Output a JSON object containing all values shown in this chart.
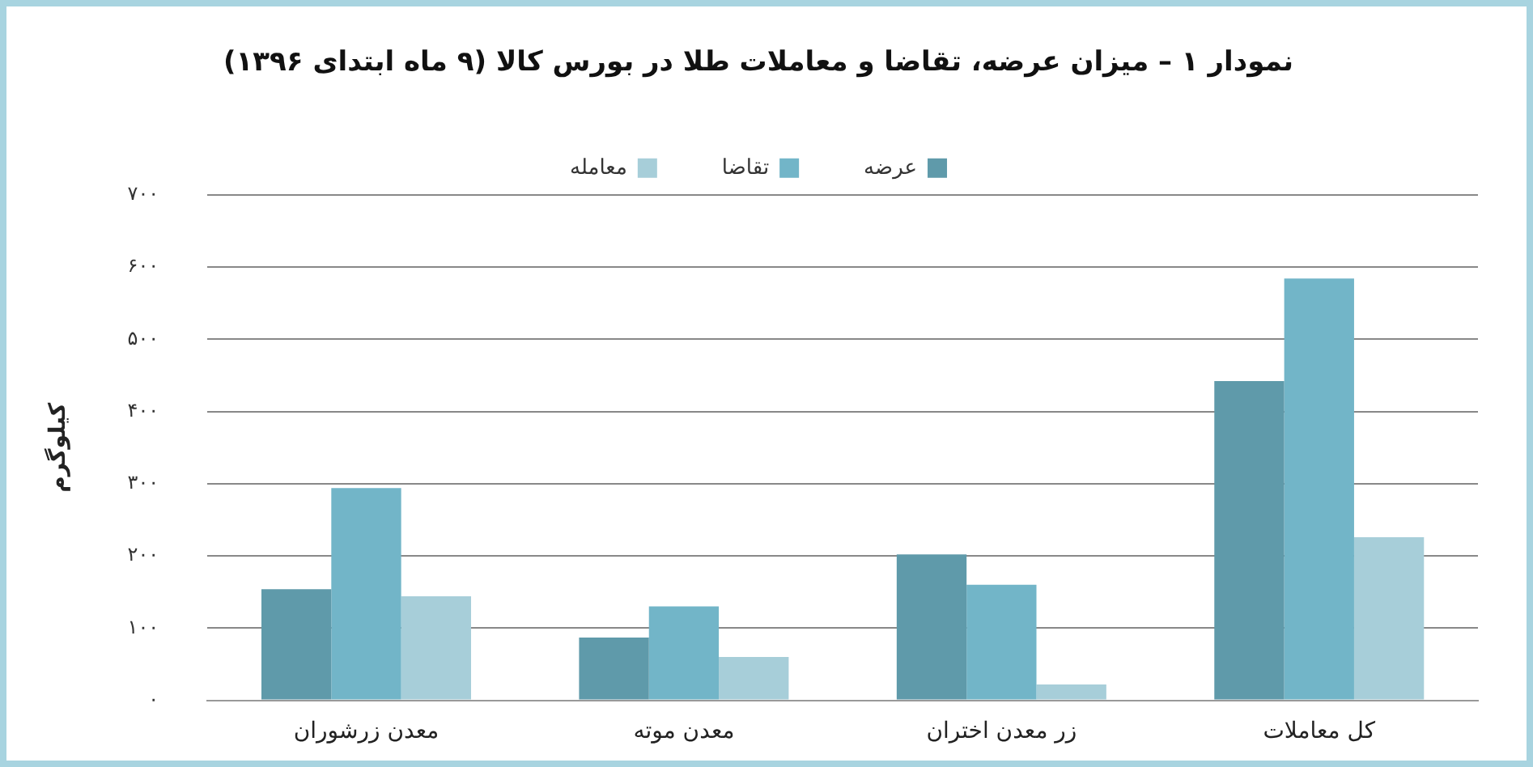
{
  "chart_data": {
    "type": "bar",
    "title": "نمودار ۱ – میزان عرضه، تقاضا و معاملات طلا در بورس کالا (۹ ماه ابتدای ۱۳۹۶)",
    "ylabel": "کیلوگرم",
    "categories": [
      "معدن زرشوران",
      "معدن موته",
      "زر معدن اختران",
      "کل معاملات"
    ],
    "series": [
      {
        "name": "عرضه",
        "color": "#5f9aaa",
        "values": [
          154,
          87,
          202,
          442
        ]
      },
      {
        "name": "تقاضا",
        "color": "#72b5c8",
        "values": [
          294,
          130,
          160,
          584
        ]
      },
      {
        "name": "معامله",
        "color": "#a7ced9",
        "values": [
          144,
          60,
          22,
          226
        ]
      }
    ],
    "ylim": [
      0,
      700
    ],
    "yticks": [
      {
        "value": 0,
        "label": "۰"
      },
      {
        "value": 100,
        "label": "۱۰۰"
      },
      {
        "value": 200,
        "label": "۲۰۰"
      },
      {
        "value": 300,
        "label": "۳۰۰"
      },
      {
        "value": 400,
        "label": "۴۰۰"
      },
      {
        "value": 500,
        "label": "۵۰۰"
      },
      {
        "value": 600,
        "label": "۶۰۰"
      },
      {
        "value": 700,
        "label": "۷۰۰"
      }
    ],
    "grid": "y",
    "legend": "top"
  }
}
